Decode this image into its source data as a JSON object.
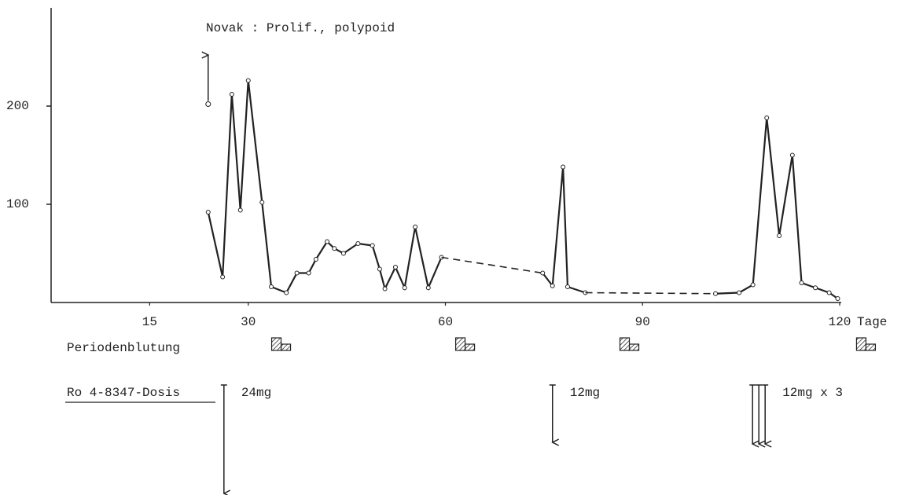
{
  "chart_data": {
    "type": "line",
    "title": "Novak : Prolif., polypoid",
    "x_label": "Tage",
    "xlim": [
      0,
      120
    ],
    "xticks": [
      15,
      30,
      60,
      90,
      120
    ],
    "ylim": [
      0,
      300
    ],
    "yticks": [
      100,
      200
    ],
    "series": [
      {
        "color": "#222",
        "dash": false,
        "markers": true,
        "x": [
          23.9,
          26.1,
          27.5,
          28.8,
          30.0,
          32.1,
          33.5,
          35.8,
          37.4,
          39.2,
          40.3,
          42.0,
          43.1,
          44.5,
          46.7,
          48.9,
          50.0,
          50.8,
          52.4,
          53.8,
          55.4,
          57.4,
          59.4
        ],
        "values": [
          92,
          26,
          212,
          94,
          226,
          102,
          16,
          10,
          30,
          30,
          44,
          62,
          55,
          50,
          60,
          58,
          34,
          14,
          36,
          15,
          77,
          15,
          46
        ]
      },
      {
        "color": "#222",
        "dash": true,
        "markers": false,
        "x": [
          59.4,
          74.8
        ],
        "values": [
          46,
          30
        ]
      },
      {
        "color": "#222",
        "dash": false,
        "markers": true,
        "x": [
          74.8,
          76.3,
          77.9,
          78.6,
          81.3
        ],
        "values": [
          30,
          17,
          138,
          16,
          10
        ]
      },
      {
        "color": "#222",
        "dash": true,
        "markers": false,
        "x": [
          81.3,
          101.1
        ],
        "values": [
          10,
          9
        ]
      },
      {
        "color": "#222",
        "dash": false,
        "markers": true,
        "x": [
          101.1,
          104.7,
          106.8,
          108.9,
          110.8,
          112.8,
          114.2,
          116.3,
          118.4,
          119.7
        ],
        "values": [
          9,
          10,
          18,
          188,
          68,
          150,
          20,
          15,
          10,
          4
        ]
      }
    ],
    "outlier": {
      "x": 23.9,
      "value": 202
    },
    "bleeding_label": "Periodenblutung",
    "bleeding_days": [
      35,
      63,
      88,
      124
    ],
    "dose_label": "Ro 4-8347-Dosis",
    "doses": [
      {
        "x": 26.3,
        "label": "24mg",
        "arrows": 1
      },
      {
        "x": 76.3,
        "label": "12mg",
        "arrows": 1
      },
      {
        "x": 107.7,
        "label": "12mg x 3",
        "arrows": 3
      }
    ]
  }
}
